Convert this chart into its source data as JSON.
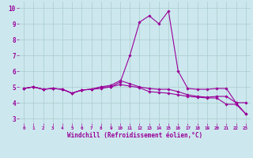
{
  "xlabel": "Windchill (Refroidissement éolien,°C)",
  "bg_color": "#cce8ee",
  "line_color": "#990099",
  "grid_color": "#aacccc",
  "x_ticks": [
    0,
    1,
    2,
    3,
    4,
    5,
    6,
    7,
    8,
    9,
    10,
    11,
    12,
    13,
    14,
    15,
    16,
    17,
    18,
    19,
    20,
    21,
    22,
    23
  ],
  "y_ticks": [
    3,
    4,
    5,
    6,
    7,
    8,
    9,
    10
  ],
  "xlim": [
    -0.5,
    23.5
  ],
  "ylim": [
    2.7,
    10.4
  ],
  "series": [
    [
      4.9,
      5.0,
      4.85,
      4.9,
      4.85,
      4.6,
      4.8,
      4.85,
      4.9,
      5.0,
      5.3,
      7.0,
      9.1,
      9.5,
      9.0,
      9.8,
      6.0,
      4.9,
      4.85,
      4.85,
      4.9,
      4.9,
      4.0,
      4.0
    ],
    [
      4.9,
      5.0,
      4.85,
      4.9,
      4.85,
      4.6,
      4.8,
      4.85,
      5.0,
      5.1,
      5.4,
      5.2,
      5.0,
      4.9,
      4.85,
      4.85,
      4.7,
      4.5,
      4.4,
      4.35,
      4.4,
      4.4,
      4.0,
      3.3
    ],
    [
      4.9,
      5.0,
      4.85,
      4.9,
      4.85,
      4.6,
      4.8,
      4.85,
      5.0,
      5.0,
      5.15,
      5.05,
      4.95,
      4.7,
      4.65,
      4.6,
      4.5,
      4.4,
      4.35,
      4.3,
      4.3,
      3.9,
      3.9,
      3.3
    ]
  ]
}
